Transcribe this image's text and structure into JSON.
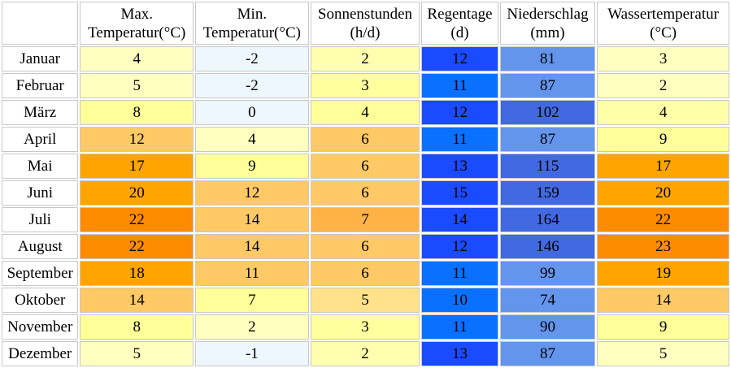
{
  "table": {
    "headers": [
      {
        "line1": "Max.",
        "line2": "Temperatur(°C)"
      },
      {
        "line1": "Min.",
        "line2": "Temperatur(°C)"
      },
      {
        "line1": "Sonnenstunden",
        "line2": "(h/d)"
      },
      {
        "line1": "Regentage",
        "line2": "(d)"
      },
      {
        "line1": "Niederschlag",
        "line2": "(mm)"
      },
      {
        "line1": "Wassertemperatur",
        "line2": "(°C)"
      }
    ],
    "rows": [
      {
        "month": "Januar",
        "values": [
          "4",
          "-2",
          "2",
          "12",
          "81",
          "3"
        ],
        "colors": [
          "#ffffc0",
          "#eef6fe",
          "#ffffb0",
          "#1a4bff",
          "#6495ed",
          "#ffffc0"
        ]
      },
      {
        "month": "Februar",
        "values": [
          "5",
          "-2",
          "3",
          "11",
          "87",
          "2"
        ],
        "colors": [
          "#ffffc0",
          "#eef6fe",
          "#ffffa0",
          "#0a70ff",
          "#6495ed",
          "#ffffc0"
        ]
      },
      {
        "month": "März",
        "values": [
          "8",
          "0",
          "4",
          "12",
          "102",
          "4"
        ],
        "colors": [
          "#ffff99",
          "#eef6fe",
          "#ffff99",
          "#1a4bff",
          "#4169e1",
          "#ffffa8"
        ]
      },
      {
        "month": "April",
        "values": [
          "12",
          "4",
          "6",
          "11",
          "87",
          "9"
        ],
        "colors": [
          "#ffc966",
          "#ffffc0",
          "#ffc966",
          "#0a70ff",
          "#6495ed",
          "#ffff99"
        ]
      },
      {
        "month": "Mai",
        "values": [
          "17",
          "9",
          "6",
          "13",
          "115",
          "17"
        ],
        "colors": [
          "#ffa500",
          "#ffff99",
          "#ffc966",
          "#1a4bff",
          "#4169e1",
          "#ffa500"
        ]
      },
      {
        "month": "Juni",
        "values": [
          "20",
          "12",
          "6",
          "15",
          "159",
          "20"
        ],
        "colors": [
          "#ffa500",
          "#ffc966",
          "#ffc966",
          "#1a4bff",
          "#4169e1",
          "#ffa500"
        ]
      },
      {
        "month": "Juli",
        "values": [
          "22",
          "14",
          "7",
          "14",
          "164",
          "22"
        ],
        "colors": [
          "#ff8c00",
          "#ffc966",
          "#ffb347",
          "#1a4bff",
          "#4169e1",
          "#ff8c00"
        ]
      },
      {
        "month": "August",
        "values": [
          "22",
          "14",
          "6",
          "12",
          "146",
          "23"
        ],
        "colors": [
          "#ff8c00",
          "#ffc966",
          "#ffc966",
          "#1a4bff",
          "#4169e1",
          "#ff8c00"
        ]
      },
      {
        "month": "September",
        "values": [
          "18",
          "11",
          "6",
          "11",
          "99",
          "19"
        ],
        "colors": [
          "#ffa500",
          "#ffc966",
          "#ffc966",
          "#0a70ff",
          "#6495ed",
          "#ffa500"
        ]
      },
      {
        "month": "Oktober",
        "values": [
          "14",
          "7",
          "5",
          "10",
          "74",
          "14"
        ],
        "colors": [
          "#ffc966",
          "#ffff99",
          "#ffe28a",
          "#0a70ff",
          "#6495ed",
          "#ffc966"
        ]
      },
      {
        "month": "November",
        "values": [
          "8",
          "2",
          "3",
          "11",
          "90",
          "9"
        ],
        "colors": [
          "#ffff99",
          "#ffffc0",
          "#ffffa0",
          "#0a70ff",
          "#6495ed",
          "#ffff99"
        ]
      },
      {
        "month": "Dezember",
        "values": [
          "5",
          "-1",
          "2",
          "13",
          "87",
          "5"
        ],
        "colors": [
          "#ffffc0",
          "#eef6fe",
          "#ffffb0",
          "#1a4bff",
          "#6495ed",
          "#ffffc0"
        ]
      }
    ]
  }
}
